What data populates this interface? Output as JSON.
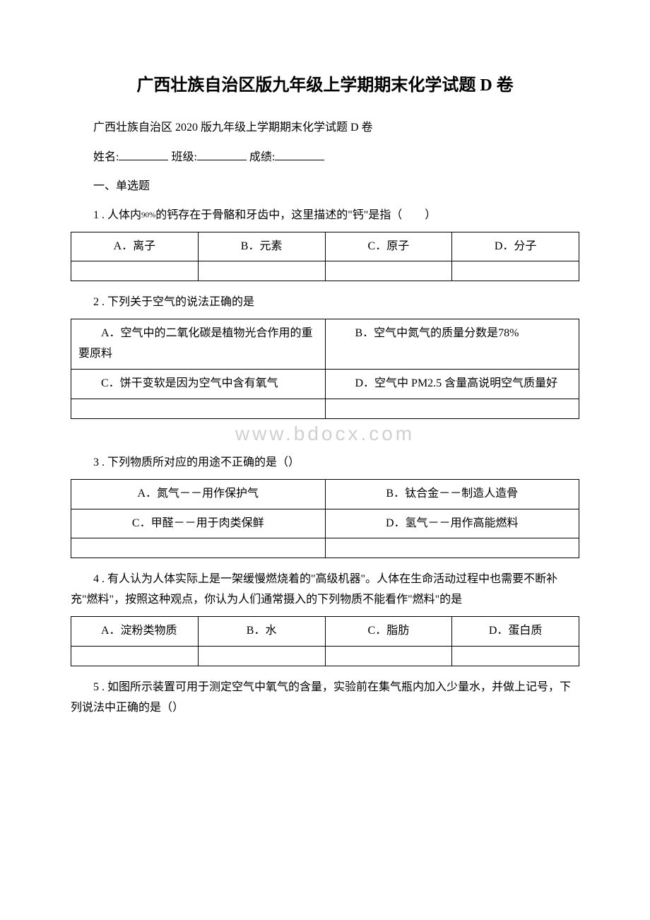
{
  "title": "广西壮族自治区版九年级上学期期末化学试题 D 卷",
  "subtitle": "广西壮族自治区 2020 版九年级上学期期末化学试题 D 卷",
  "form": {
    "name_label": "姓名:",
    "class_label": "班级:",
    "score_label": "成绩:"
  },
  "section1": "一、单选题",
  "q1": {
    "prefix": "1 . 人体内",
    "percent": "90%",
    "suffix": "的钙存在于骨骼和牙齿中，这里描述的\"钙\"是指",
    "paren": "（　　）",
    "options": {
      "a": "A．离子",
      "b": "B．元素",
      "c": "C．原子",
      "d": "D．分子"
    }
  },
  "q2": {
    "text": "2 . 下列关于空气的说法正确的是",
    "options": {
      "a": "A．空气中的二氧化碳是植物光合作用的重要原料",
      "b": "B．空气中氮气的质量分数是78%",
      "c": "C．饼干变软是因为空气中含有氧气",
      "d": "D．空气中 PM2.5 含量高说明空气质量好"
    }
  },
  "watermark": "www.bdocx.com",
  "q3": {
    "text": "3 . 下列物质所对应的用途不正确的是（）",
    "options": {
      "a": "A．氮气－－用作保护气",
      "b": "B．钛合金－－制造人造骨",
      "c": "C．甲醛－－用于肉类保鲜",
      "d": "D．氢气－－用作高能燃料"
    }
  },
  "q4": {
    "text": "4 . 有人认为人体实际上是一架缓慢燃烧着的\"高级机器\"。人体在生命活动过程中也需要不断补充\"燃料\"，按照这种观点，你认为人们通常摄入的下列物质不能看作\"燃料\"的是",
    "options": {
      "a": "A．淀粉类物质",
      "b": "B．水",
      "c": "C．脂肪",
      "d": "D．蛋白质"
    }
  },
  "q5": {
    "text": "5 . 如图所示装置可用于测定空气中氧气的含量，实验前在集气瓶内加入少量水，并做上记号，下列说法中正确的是（）"
  },
  "styles": {
    "text_color": "#000000",
    "background_color": "#ffffff",
    "border_color": "#000000",
    "watermark_color": "#d0d0d0",
    "title_fontsize": 24,
    "body_fontsize": 16,
    "watermark_fontsize": 28
  }
}
